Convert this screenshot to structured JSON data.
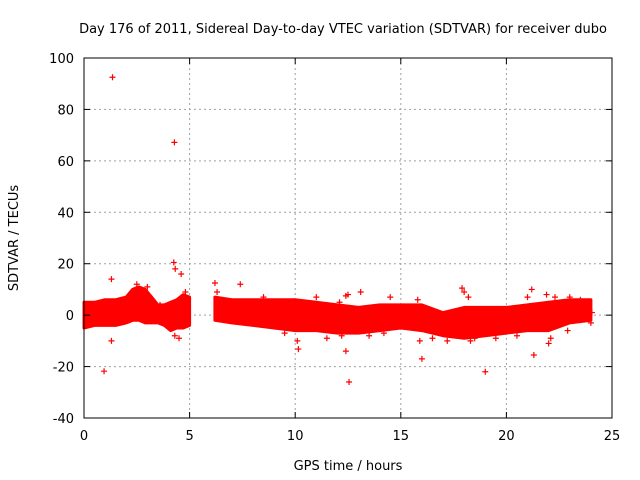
{
  "chart_data": {
    "type": "scatter",
    "title": "Day 176 of 2011, Sidereal Day-to-day VTEC variation (SDTVAR) for receiver dubo",
    "xlabel": "GPS time / hours",
    "ylabel": "SDTVAR / TECUs",
    "xlim": [
      0,
      25
    ],
    "ylim": [
      -40,
      100
    ],
    "x_ticks": [
      0,
      5,
      10,
      15,
      20,
      25
    ],
    "y_ticks": [
      -40,
      -20,
      0,
      20,
      40,
      60,
      80,
      100
    ],
    "x_tick_labels": [
      "0",
      "5",
      "10",
      "15",
      "20",
      "25"
    ],
    "y_tick_labels": [
      "-40",
      "-20",
      "0",
      "20",
      "40",
      "60",
      "80",
      "100"
    ],
    "grid": true,
    "marker": "+",
    "color": "#ff0000",
    "band_segments": [
      {
        "name": "segment-1",
        "x": [
          0.0,
          0.5,
          1.0,
          1.5,
          2.0,
          2.3,
          2.6,
          2.9,
          3.2,
          3.5,
          3.8,
          4.1,
          4.4,
          4.7,
          5.0
        ],
        "upper": [
          5,
          5,
          6,
          6,
          7,
          10,
          11,
          10,
          7,
          4,
          4,
          5,
          6,
          8,
          7
        ],
        "lower": [
          -5,
          -4,
          -4,
          -4,
          -3,
          -2,
          -2,
          -3,
          -3,
          -3,
          -4,
          -6,
          -5,
          -5,
          -4
        ]
      },
      {
        "name": "segment-2",
        "x": [
          6.2,
          7.0,
          8.0,
          9.0,
          10.0,
          11.0,
          12.0,
          13.0,
          14.0,
          15.0,
          16.0,
          17.0,
          18.0,
          19.0,
          20.0,
          21.0,
          22.0,
          23.0,
          24.0
        ],
        "upper": [
          7,
          6,
          6,
          6,
          6,
          5,
          4,
          3,
          4,
          4,
          4,
          1,
          3,
          3,
          3,
          4,
          5,
          6,
          6
        ],
        "lower": [
          -2,
          -3,
          -4,
          -5,
          -6,
          -6,
          -7,
          -7,
          -6,
          -5,
          -6,
          -8,
          -9,
          -8,
          -7,
          -6,
          -6,
          -3,
          -2
        ]
      }
    ],
    "points": [
      {
        "x": 1.35,
        "y": 92.5
      },
      {
        "x": 4.28,
        "y": 67.2
      },
      {
        "x": 0.95,
        "y": -21.8
      },
      {
        "x": 1.3,
        "y": 14
      },
      {
        "x": 1.3,
        "y": -10
      },
      {
        "x": 4.25,
        "y": 20.5
      },
      {
        "x": 4.32,
        "y": 18
      },
      {
        "x": 4.6,
        "y": 16
      },
      {
        "x": 4.3,
        "y": -8
      },
      {
        "x": 4.5,
        "y": -9
      },
      {
        "x": 4.8,
        "y": 9
      },
      {
        "x": 6.2,
        "y": 12.5
      },
      {
        "x": 7.4,
        "y": 12
      },
      {
        "x": 10.15,
        "y": -13.2
      },
      {
        "x": 10.1,
        "y": -10
      },
      {
        "x": 9.5,
        "y": -7
      },
      {
        "x": 11.0,
        "y": 7
      },
      {
        "x": 12.4,
        "y": 7.5
      },
      {
        "x": 12.5,
        "y": 8
      },
      {
        "x": 12.4,
        "y": -14
      },
      {
        "x": 12.55,
        "y": -26
      },
      {
        "x": 12.2,
        "y": -8
      },
      {
        "x": 12.1,
        "y": 5
      },
      {
        "x": 13.1,
        "y": 9
      },
      {
        "x": 14.5,
        "y": 7
      },
      {
        "x": 15.8,
        "y": 6
      },
      {
        "x": 16.0,
        "y": -17
      },
      {
        "x": 15.9,
        "y": -10
      },
      {
        "x": 17.9,
        "y": 10.5
      },
      {
        "x": 18.0,
        "y": 9
      },
      {
        "x": 18.2,
        "y": 7
      },
      {
        "x": 18.5,
        "y": -9
      },
      {
        "x": 18.3,
        "y": -10
      },
      {
        "x": 19.0,
        "y": -22
      },
      {
        "x": 21.2,
        "y": 10
      },
      {
        "x": 21.3,
        "y": -15.5
      },
      {
        "x": 21.0,
        "y": 7
      },
      {
        "x": 21.9,
        "y": 8
      },
      {
        "x": 22.0,
        "y": -11
      },
      {
        "x": 22.1,
        "y": -9
      },
      {
        "x": 22.3,
        "y": 7
      },
      {
        "x": 22.9,
        "y": -6
      },
      {
        "x": 23.5,
        "y": 6
      },
      {
        "x": 24.0,
        "y": -3
      },
      {
        "x": 24.05,
        "y": 1
      },
      {
        "x": 0.1,
        "y": -3
      },
      {
        "x": 0.3,
        "y": 4
      },
      {
        "x": 2.5,
        "y": 12
      },
      {
        "x": 3.0,
        "y": 11
      },
      {
        "x": 3.6,
        "y": 4
      },
      {
        "x": 6.3,
        "y": 9
      },
      {
        "x": 8.5,
        "y": 7
      },
      {
        "x": 11.5,
        "y": -9
      },
      {
        "x": 13.5,
        "y": -8
      },
      {
        "x": 14.2,
        "y": -7
      },
      {
        "x": 16.5,
        "y": -9
      },
      {
        "x": 17.2,
        "y": -10
      },
      {
        "x": 19.5,
        "y": -9
      },
      {
        "x": 20.5,
        "y": -8
      },
      {
        "x": 23.0,
        "y": 7
      }
    ]
  }
}
